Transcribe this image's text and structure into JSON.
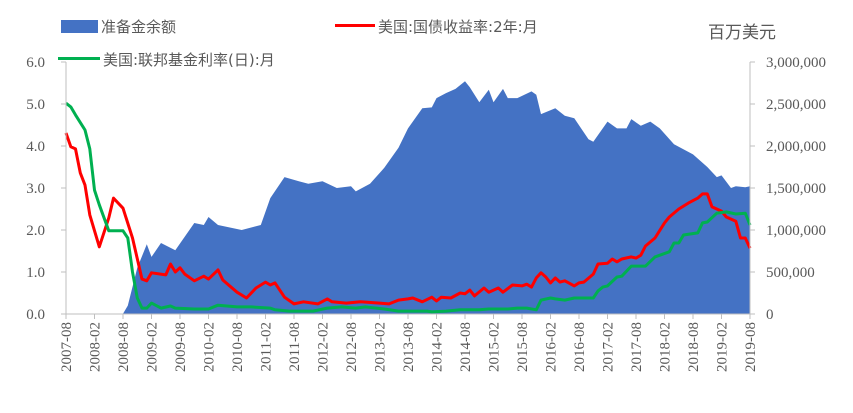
{
  "chart_data": {
    "type": "area+line",
    "unit_label": "百万美元",
    "legend": [
      {
        "name": "准备金余额",
        "color": "#4472C4",
        "kind": "area",
        "axis": "right"
      },
      {
        "name": "美国:国债收益率:2年:月",
        "color": "#FF0000",
        "kind": "line",
        "axis": "left"
      },
      {
        "name": "美国:联邦基金利率(日):月",
        "color": "#00B050",
        "kind": "line",
        "axis": "left"
      }
    ],
    "x_range": [
      "2007-08",
      "2019-08"
    ],
    "x_tick_labels": [
      "2007-08",
      "2008-02",
      "2008-08",
      "2009-02",
      "2009-08",
      "2010-02",
      "2010-08",
      "2011-02",
      "2011-08",
      "2012-02",
      "2012-08",
      "2013-02",
      "2013-08",
      "2014-02",
      "2014-08",
      "2015-02",
      "2015-08",
      "2016-02",
      "2016-08",
      "2017-02",
      "2017-08",
      "2018-02",
      "2018-08",
      "2019-02",
      "2019-08"
    ],
    "y_left": {
      "range": [
        0,
        6
      ],
      "tick_labels": [
        "0.0",
        "1.0",
        "2.0",
        "3.0",
        "4.0",
        "5.0",
        "6.0"
      ]
    },
    "y_right": {
      "range": [
        0,
        3000000
      ],
      "tick_labels": [
        "0",
        "500,000",
        "1,000,000",
        "1,500,000",
        "2,000,000",
        "2,500,000",
        "3,000,000"
      ]
    },
    "grid": false,
    "legend_placement": "top",
    "series": [
      {
        "name": "准备金余额",
        "points": [
          [
            "2007-08",
            2000
          ],
          [
            "2008-08",
            2000
          ],
          [
            "2008-09",
            100000
          ],
          [
            "2008-11",
            550000
          ],
          [
            "2009-01",
            830000
          ],
          [
            "2009-02",
            680000
          ],
          [
            "2009-04",
            845000
          ],
          [
            "2009-07",
            760000
          ],
          [
            "2009-11",
            1083000
          ],
          [
            "2010-01",
            1060000
          ],
          [
            "2010-02",
            1155000
          ],
          [
            "2010-04",
            1060000
          ],
          [
            "2010-09",
            1000000
          ],
          [
            "2011-01",
            1060000
          ],
          [
            "2011-03",
            1380000
          ],
          [
            "2011-06",
            1630000
          ],
          [
            "2011-09",
            1580000
          ],
          [
            "2011-11",
            1550000
          ],
          [
            "2012-02",
            1580000
          ],
          [
            "2012-05",
            1500000
          ],
          [
            "2012-08",
            1520000
          ],
          [
            "2012-09",
            1460000
          ],
          [
            "2012-12",
            1550000
          ],
          [
            "2013-03",
            1740000
          ],
          [
            "2013-06",
            1980000
          ],
          [
            "2013-08",
            2210000
          ],
          [
            "2013-11",
            2450000
          ],
          [
            "2014-01",
            2460000
          ],
          [
            "2014-02",
            2570000
          ],
          [
            "2014-04",
            2630000
          ],
          [
            "2014-06",
            2680000
          ],
          [
            "2014-08",
            2770000
          ],
          [
            "2014-09",
            2700000
          ],
          [
            "2014-11",
            2520000
          ],
          [
            "2015-01",
            2670000
          ],
          [
            "2015-02",
            2520000
          ],
          [
            "2015-04",
            2680000
          ],
          [
            "2015-05",
            2570000
          ],
          [
            "2015-07",
            2570000
          ],
          [
            "2015-10",
            2650000
          ],
          [
            "2015-11",
            2610000
          ],
          [
            "2015-12",
            2380000
          ],
          [
            "2016-03",
            2450000
          ],
          [
            "2016-05",
            2360000
          ],
          [
            "2016-07",
            2330000
          ],
          [
            "2016-10",
            2080000
          ],
          [
            "2016-11",
            2050000
          ],
          [
            "2017-02",
            2290000
          ],
          [
            "2017-04",
            2210000
          ],
          [
            "2017-06",
            2210000
          ],
          [
            "2017-07",
            2320000
          ],
          [
            "2017-09",
            2240000
          ],
          [
            "2017-11",
            2290000
          ],
          [
            "2018-01",
            2210000
          ],
          [
            "2018-04",
            2020000
          ],
          [
            "2018-08",
            1900000
          ],
          [
            "2018-11",
            1750000
          ],
          [
            "2019-01",
            1630000
          ],
          [
            "2019-02",
            1650000
          ],
          [
            "2019-04",
            1500000
          ],
          [
            "2019-05",
            1520000
          ],
          [
            "2019-07",
            1510000
          ],
          [
            "2019-08",
            1520000
          ]
        ]
      },
      {
        "name": "美国:国债收益率:2年:月",
        "points": [
          [
            "2007-08",
            4.31
          ],
          [
            "2007-09",
            3.98
          ],
          [
            "2007-10",
            3.93
          ],
          [
            "2007-11",
            3.36
          ],
          [
            "2007-12",
            3.07
          ],
          [
            "2008-01",
            2.36
          ],
          [
            "2008-03",
            1.6
          ],
          [
            "2008-05",
            2.29
          ],
          [
            "2008-06",
            2.76
          ],
          [
            "2008-08",
            2.52
          ],
          [
            "2008-10",
            1.81
          ],
          [
            "2008-12",
            0.83
          ],
          [
            "2009-01",
            0.79
          ],
          [
            "2009-02",
            0.98
          ],
          [
            "2009-05",
            0.93
          ],
          [
            "2009-06",
            1.19
          ],
          [
            "2009-07",
            1.0
          ],
          [
            "2009-08",
            1.1
          ],
          [
            "2009-09",
            0.95
          ],
          [
            "2009-11",
            0.79
          ],
          [
            "2010-01",
            0.9
          ],
          [
            "2010-02",
            0.83
          ],
          [
            "2010-04",
            1.05
          ],
          [
            "2010-05",
            0.81
          ],
          [
            "2010-08",
            0.52
          ],
          [
            "2010-10",
            0.38
          ],
          [
            "2010-12",
            0.62
          ],
          [
            "2011-02",
            0.76
          ],
          [
            "2011-03",
            0.69
          ],
          [
            "2011-04",
            0.74
          ],
          [
            "2011-06",
            0.4
          ],
          [
            "2011-08",
            0.24
          ],
          [
            "2011-10",
            0.29
          ],
          [
            "2012-01",
            0.24
          ],
          [
            "2012-03",
            0.36
          ],
          [
            "2012-04",
            0.29
          ],
          [
            "2012-07",
            0.26
          ],
          [
            "2012-10",
            0.29
          ],
          [
            "2013-02",
            0.26
          ],
          [
            "2013-04",
            0.24
          ],
          [
            "2013-06",
            0.33
          ],
          [
            "2013-08",
            0.36
          ],
          [
            "2013-09",
            0.38
          ],
          [
            "2013-11",
            0.29
          ],
          [
            "2014-01",
            0.4
          ],
          [
            "2014-02",
            0.31
          ],
          [
            "2014-03",
            0.4
          ],
          [
            "2014-05",
            0.38
          ],
          [
            "2014-07",
            0.5
          ],
          [
            "2014-08",
            0.48
          ],
          [
            "2014-09",
            0.57
          ],
          [
            "2014-10",
            0.43
          ],
          [
            "2014-12",
            0.62
          ],
          [
            "2015-01",
            0.52
          ],
          [
            "2015-03",
            0.62
          ],
          [
            "2015-04",
            0.52
          ],
          [
            "2015-06",
            0.69
          ],
          [
            "2015-08",
            0.67
          ],
          [
            "2015-09",
            0.71
          ],
          [
            "2015-10",
            0.64
          ],
          [
            "2015-11",
            0.86
          ],
          [
            "2015-12",
            0.98
          ],
          [
            "2016-01",
            0.88
          ],
          [
            "2016-02",
            0.74
          ],
          [
            "2016-03",
            0.86
          ],
          [
            "2016-04",
            0.76
          ],
          [
            "2016-05",
            0.79
          ],
          [
            "2016-07",
            0.67
          ],
          [
            "2016-08",
            0.74
          ],
          [
            "2016-09",
            0.76
          ],
          [
            "2016-11",
            0.95
          ],
          [
            "2016-12",
            1.19
          ],
          [
            "2017-02",
            1.21
          ],
          [
            "2017-03",
            1.31
          ],
          [
            "2017-04",
            1.24
          ],
          [
            "2017-05",
            1.31
          ],
          [
            "2017-07",
            1.36
          ],
          [
            "2017-08",
            1.33
          ],
          [
            "2017-09",
            1.4
          ],
          [
            "2017-10",
            1.62
          ],
          [
            "2017-12",
            1.81
          ],
          [
            "2018-02",
            2.17
          ],
          [
            "2018-03",
            2.31
          ],
          [
            "2018-05",
            2.5
          ],
          [
            "2018-07",
            2.64
          ],
          [
            "2018-09",
            2.76
          ],
          [
            "2018-10",
            2.86
          ],
          [
            "2018-11",
            2.86
          ],
          [
            "2018-12",
            2.55
          ],
          [
            "2019-02",
            2.45
          ],
          [
            "2019-03",
            2.31
          ],
          [
            "2019-05",
            2.21
          ],
          [
            "2019-06",
            1.81
          ],
          [
            "2019-07",
            1.81
          ],
          [
            "2019-08",
            1.57
          ]
        ]
      },
      {
        "name": "美国:联邦基金利率(日):月",
        "points": [
          [
            "2007-08",
            5.02
          ],
          [
            "2007-09",
            4.93
          ],
          [
            "2007-10",
            4.74
          ],
          [
            "2007-12",
            4.38
          ],
          [
            "2008-01",
            3.93
          ],
          [
            "2008-02",
            2.95
          ],
          [
            "2008-03",
            2.6
          ],
          [
            "2008-05",
            1.98
          ],
          [
            "2008-08",
            1.98
          ],
          [
            "2008-09",
            1.81
          ],
          [
            "2008-10",
            1.0
          ],
          [
            "2008-11",
            0.38
          ],
          [
            "2008-12",
            0.14
          ],
          [
            "2009-01",
            0.14
          ],
          [
            "2009-02",
            0.26
          ],
          [
            "2009-04",
            0.14
          ],
          [
            "2009-06",
            0.19
          ],
          [
            "2009-07",
            0.14
          ],
          [
            "2009-11",
            0.12
          ],
          [
            "2010-02",
            0.12
          ],
          [
            "2010-04",
            0.21
          ],
          [
            "2010-08",
            0.17
          ],
          [
            "2010-11",
            0.17
          ],
          [
            "2011-03",
            0.14
          ],
          [
            "2011-04",
            0.1
          ],
          [
            "2011-07",
            0.07
          ],
          [
            "2011-10",
            0.07
          ],
          [
            "2011-12",
            0.07
          ],
          [
            "2012-03",
            0.14
          ],
          [
            "2012-06",
            0.17
          ],
          [
            "2012-09",
            0.14
          ],
          [
            "2012-11",
            0.17
          ],
          [
            "2013-03",
            0.12
          ],
          [
            "2013-06",
            0.07
          ],
          [
            "2013-12",
            0.07
          ],
          [
            "2014-01",
            0.05
          ],
          [
            "2014-04",
            0.07
          ],
          [
            "2014-07",
            0.1
          ],
          [
            "2014-11",
            0.1
          ],
          [
            "2015-01",
            0.12
          ],
          [
            "2015-05",
            0.12
          ],
          [
            "2015-07",
            0.14
          ],
          [
            "2015-09",
            0.14
          ],
          [
            "2015-11",
            0.1
          ],
          [
            "2015-12",
            0.33
          ],
          [
            "2016-02",
            0.38
          ],
          [
            "2016-03",
            0.36
          ],
          [
            "2016-05",
            0.33
          ],
          [
            "2016-07",
            0.38
          ],
          [
            "2016-11",
            0.38
          ],
          [
            "2016-12",
            0.55
          ],
          [
            "2017-01",
            0.64
          ],
          [
            "2017-02",
            0.67
          ],
          [
            "2017-04",
            0.88
          ],
          [
            "2017-05",
            0.9
          ],
          [
            "2017-07",
            1.14
          ],
          [
            "2017-10",
            1.14
          ],
          [
            "2017-12",
            1.36
          ],
          [
            "2018-03",
            1.48
          ],
          [
            "2018-04",
            1.69
          ],
          [
            "2018-05",
            1.69
          ],
          [
            "2018-06",
            1.88
          ],
          [
            "2018-09",
            1.93
          ],
          [
            "2018-10",
            2.17
          ],
          [
            "2018-11",
            2.19
          ],
          [
            "2019-01",
            2.4
          ],
          [
            "2019-03",
            2.43
          ],
          [
            "2019-05",
            2.38
          ],
          [
            "2019-07",
            2.4
          ],
          [
            "2019-08",
            2.12
          ]
        ]
      }
    ]
  }
}
